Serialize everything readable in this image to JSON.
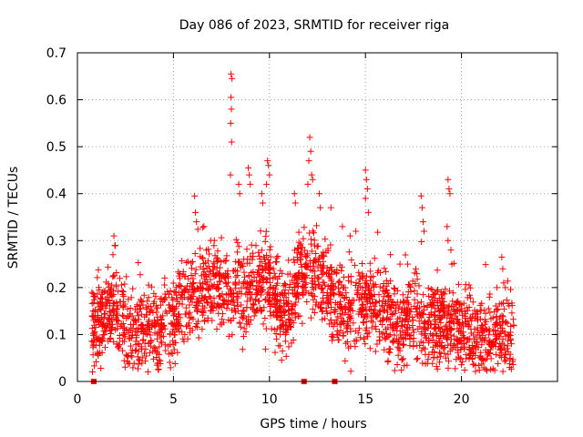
{
  "chart_data": {
    "type": "scatter",
    "title": "Day 086 of 2023, SRMTID for receiver riga",
    "xlabel": "GPS time / hours",
    "ylabel": "SRMTID / TECUs",
    "xlim": [
      0,
      25
    ],
    "ylim": [
      0,
      0.7
    ],
    "xticks": [
      0,
      5,
      10,
      15,
      20
    ],
    "xtick_labels": [
      "0",
      "5",
      "10",
      "15",
      "20"
    ],
    "yticks": [
      0,
      0.1,
      0.2,
      0.3,
      0.4,
      0.5,
      0.6,
      0.7
    ],
    "ytick_labels": [
      "0",
      "0.1",
      "0.2",
      "0.3",
      "0.4",
      "0.5",
      "0.6",
      "0.7"
    ],
    "grid": true,
    "marker": "plus",
    "color": "#ff0000",
    "x_range_hours": [
      0.75,
      22.75
    ],
    "level_profile": [
      {
        "x": 0.75,
        "y": 0.11
      },
      {
        "x": 1.5,
        "y": 0.14
      },
      {
        "x": 2.0,
        "y": 0.16
      },
      {
        "x": 2.5,
        "y": 0.11
      },
      {
        "x": 3.0,
        "y": 0.1
      },
      {
        "x": 3.5,
        "y": 0.11
      },
      {
        "x": 4.0,
        "y": 0.1
      },
      {
        "x": 4.5,
        "y": 0.13
      },
      {
        "x": 5.0,
        "y": 0.12
      },
      {
        "x": 5.5,
        "y": 0.17
      },
      {
        "x": 6.0,
        "y": 0.18
      },
      {
        "x": 6.5,
        "y": 0.2
      },
      {
        "x": 7.0,
        "y": 0.21
      },
      {
        "x": 7.5,
        "y": 0.19
      },
      {
        "x": 8.0,
        "y": 0.18
      },
      {
        "x": 8.5,
        "y": 0.2
      },
      {
        "x": 9.0,
        "y": 0.19
      },
      {
        "x": 9.5,
        "y": 0.2
      },
      {
        "x": 10.0,
        "y": 0.22
      },
      {
        "x": 10.5,
        "y": 0.15
      },
      {
        "x": 11.0,
        "y": 0.14
      },
      {
        "x": 11.5,
        "y": 0.22
      },
      {
        "x": 12.0,
        "y": 0.24
      },
      {
        "x": 12.5,
        "y": 0.23
      },
      {
        "x": 13.0,
        "y": 0.2
      },
      {
        "x": 13.5,
        "y": 0.16
      },
      {
        "x": 14.0,
        "y": 0.14
      },
      {
        "x": 14.5,
        "y": 0.15
      },
      {
        "x": 15.0,
        "y": 0.16
      },
      {
        "x": 15.5,
        "y": 0.18
      },
      {
        "x": 16.0,
        "y": 0.15
      },
      {
        "x": 16.5,
        "y": 0.13
      },
      {
        "x": 17.0,
        "y": 0.13
      },
      {
        "x": 17.5,
        "y": 0.14
      },
      {
        "x": 18.0,
        "y": 0.13
      },
      {
        "x": 18.5,
        "y": 0.11
      },
      {
        "x": 19.0,
        "y": 0.12
      },
      {
        "x": 19.5,
        "y": 0.12
      },
      {
        "x": 20.0,
        "y": 0.12
      },
      {
        "x": 20.5,
        "y": 0.11
      },
      {
        "x": 21.0,
        "y": 0.1
      },
      {
        "x": 21.5,
        "y": 0.09
      },
      {
        "x": 22.0,
        "y": 0.1
      },
      {
        "x": 22.75,
        "y": 0.09
      }
    ],
    "spread": 0.045,
    "point_count": 2400,
    "outliers": [
      {
        "x": 1.9,
        "y": 0.31
      },
      {
        "x": 1.95,
        "y": 0.29
      },
      {
        "x": 1.85,
        "y": 0.27
      },
      {
        "x": 6.1,
        "y": 0.395
      },
      {
        "x": 6.15,
        "y": 0.36
      },
      {
        "x": 6.2,
        "y": 0.34
      },
      {
        "x": 8.0,
        "y": 0.655
      },
      {
        "x": 8.05,
        "y": 0.645
      },
      {
        "x": 8.0,
        "y": 0.605
      },
      {
        "x": 8.02,
        "y": 0.58
      },
      {
        "x": 7.98,
        "y": 0.55
      },
      {
        "x": 8.03,
        "y": 0.51
      },
      {
        "x": 7.97,
        "y": 0.44
      },
      {
        "x": 8.4,
        "y": 0.42
      },
      {
        "x": 8.45,
        "y": 0.4
      },
      {
        "x": 8.9,
        "y": 0.455
      },
      {
        "x": 8.95,
        "y": 0.44
      },
      {
        "x": 9.0,
        "y": 0.42
      },
      {
        "x": 9.6,
        "y": 0.4
      },
      {
        "x": 9.65,
        "y": 0.38
      },
      {
        "x": 9.9,
        "y": 0.47
      },
      {
        "x": 9.95,
        "y": 0.46
      },
      {
        "x": 10.0,
        "y": 0.44
      },
      {
        "x": 9.85,
        "y": 0.42
      },
      {
        "x": 11.3,
        "y": 0.4
      },
      {
        "x": 11.35,
        "y": 0.38
      },
      {
        "x": 12.1,
        "y": 0.52
      },
      {
        "x": 12.15,
        "y": 0.49
      },
      {
        "x": 12.05,
        "y": 0.47
      },
      {
        "x": 12.2,
        "y": 0.44
      },
      {
        "x": 12.0,
        "y": 0.42
      },
      {
        "x": 12.25,
        "y": 0.43
      },
      {
        "x": 12.6,
        "y": 0.4
      },
      {
        "x": 12.65,
        "y": 0.37
      },
      {
        "x": 13.2,
        "y": 0.37
      },
      {
        "x": 13.8,
        "y": 0.33
      },
      {
        "x": 14.2,
        "y": 0.31
      },
      {
        "x": 14.5,
        "y": 0.32
      },
      {
        "x": 15.0,
        "y": 0.45
      },
      {
        "x": 15.05,
        "y": 0.43
      },
      {
        "x": 15.1,
        "y": 0.41
      },
      {
        "x": 15.0,
        "y": 0.39
      },
      {
        "x": 15.15,
        "y": 0.36
      },
      {
        "x": 16.3,
        "y": 0.27
      },
      {
        "x": 17.2,
        "y": 0.25
      },
      {
        "x": 17.9,
        "y": 0.395
      },
      {
        "x": 17.95,
        "y": 0.37
      },
      {
        "x": 18.0,
        "y": 0.34
      },
      {
        "x": 18.05,
        "y": 0.32
      },
      {
        "x": 19.3,
        "y": 0.43
      },
      {
        "x": 19.35,
        "y": 0.41
      },
      {
        "x": 19.4,
        "y": 0.4
      },
      {
        "x": 19.25,
        "y": 0.33
      },
      {
        "x": 19.3,
        "y": 0.3
      },
      {
        "x": 19.45,
        "y": 0.28
      },
      {
        "x": 19.5,
        "y": 0.25
      },
      {
        "x": 22.1,
        "y": 0.265
      },
      {
        "x": 22.15,
        "y": 0.24
      },
      {
        "x": 22.2,
        "y": 0.21
      }
    ],
    "axis_markers_x": [
      0.85,
      11.8,
      13.4
    ]
  }
}
